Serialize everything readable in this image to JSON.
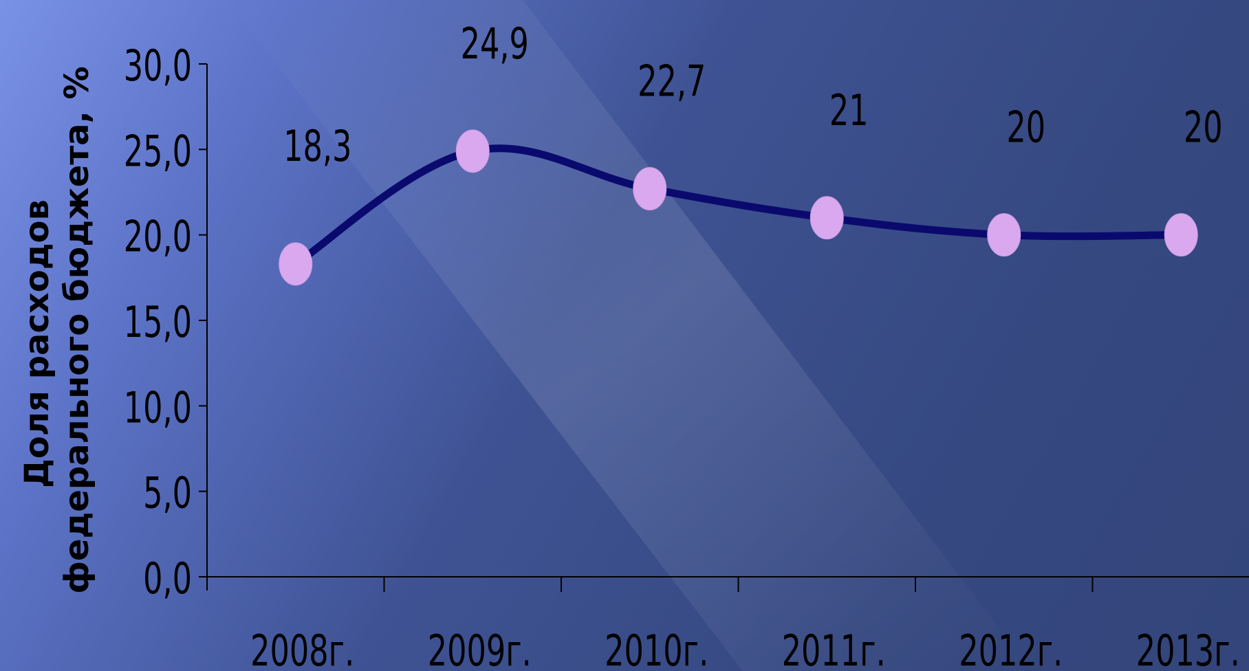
{
  "chart_data": {
    "type": "line",
    "title": "",
    "xlabel": "",
    "ylabel_line1": "Доля расходов",
    "ylabel_line2": "федерального бюджета, %",
    "categories": [
      "2008г.",
      "2009г.",
      "2010г.",
      "2011г.",
      "2012г.",
      "2013г."
    ],
    "values": [
      18.3,
      24.9,
      22.7,
      21,
      20,
      20
    ],
    "data_labels": [
      "18,3",
      "24,9",
      "22,7",
      "21",
      "20",
      "20"
    ],
    "y_ticks": [
      "0,0",
      "5,0",
      "10,0",
      "15,0",
      "20,0",
      "25,0",
      "30,0"
    ],
    "ylim": [
      0,
      30
    ],
    "grid": false,
    "legend": "none",
    "line_color": "#0a0a6e",
    "marker_color": "#d9a8ee",
    "text_color": "#000000"
  }
}
